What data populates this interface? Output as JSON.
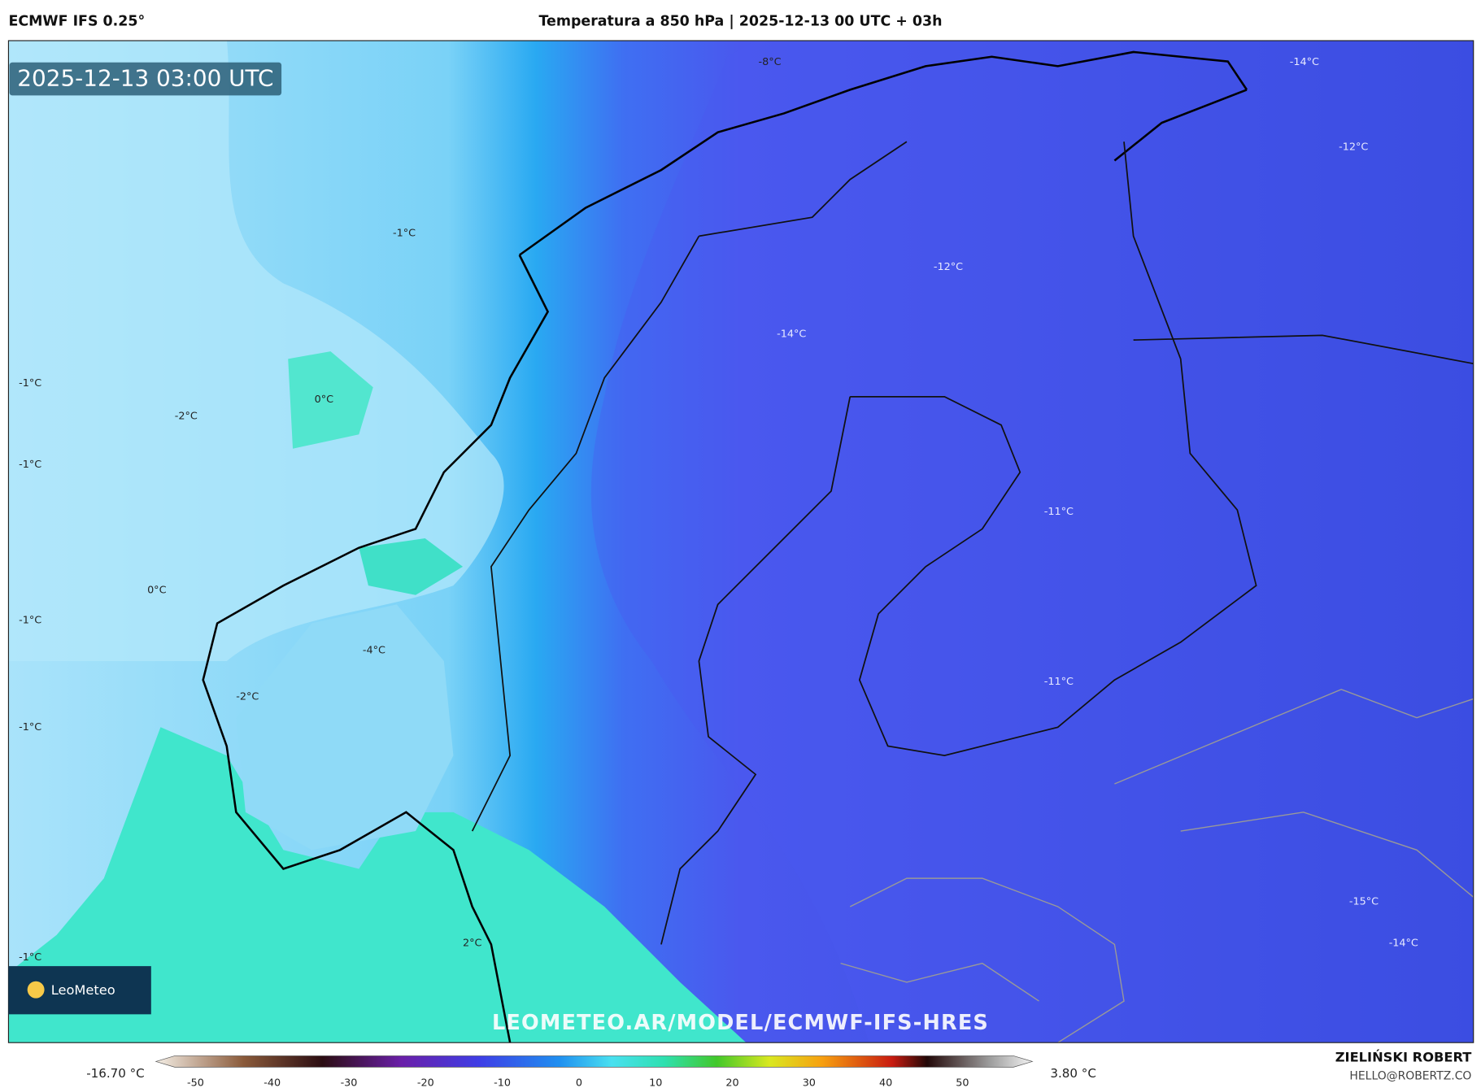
{
  "header": {
    "model": "ECMWF IFS 0.25°",
    "title": "Temperatura a 850 hPa | 2025-12-13 00 UTC + 03h"
  },
  "map": {
    "timestamp": "2025-12-13 03:00 UTC",
    "contour_labels": [
      "-8°C",
      "-14°C",
      "-12°C",
      "-1°C",
      "-12°C",
      "-14°C",
      "-1°C",
      "0°C",
      "-2°C",
      "-1°C",
      "-11°C",
      "0°C",
      "-1°C",
      "-4°C",
      "-11°C",
      "-2°C",
      "-1°C",
      "-15°C",
      "2°C",
      "-14°C",
      "-1°C"
    ],
    "logo": "LeoMeteo",
    "watermark": "LEOMETEO.AR/MODEL/ECMWF-IFS-HRES"
  },
  "colorbar": {
    "min_label": "-16.70 °C",
    "max_label": "3.80 °C",
    "ticks": [
      -50,
      -40,
      -30,
      -20,
      -10,
      0,
      10,
      20,
      30,
      40,
      50
    ]
  },
  "footer": {
    "author": "ZIELIŃSKI ROBERT",
    "email": "HELLO@ROBERTZ.CO"
  }
}
